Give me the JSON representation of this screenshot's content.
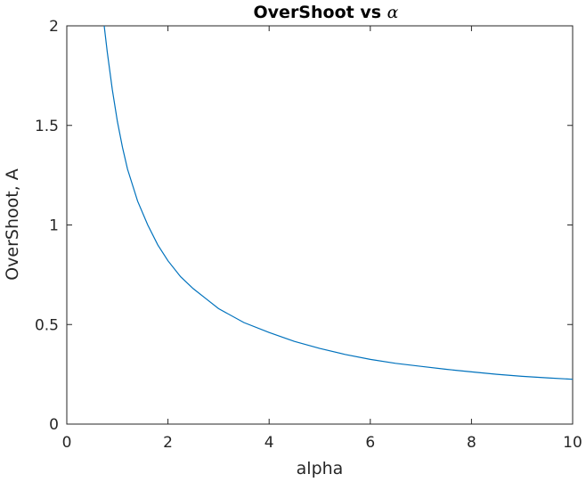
{
  "chart_data": {
    "type": "line",
    "title": "OverShoot vs ",
    "title_symbol": "α",
    "xlabel": "alpha",
    "ylabel": "OverShoot, A",
    "xlim": [
      0,
      10
    ],
    "ylim": [
      0,
      2
    ],
    "xticks": [
      "0",
      "2",
      "4",
      "6",
      "8",
      "10"
    ],
    "yticks": [
      "0",
      "0.5",
      "1",
      "1.5",
      "2"
    ],
    "grid": false,
    "series": [
      {
        "color": "#0072bd",
        "x": [
          0.74,
          0.8,
          0.9,
          1.0,
          1.1,
          1.2,
          1.4,
          1.6,
          1.8,
          2.0,
          2.25,
          2.5,
          2.75,
          3.0,
          3.5,
          4.0,
          4.5,
          5.0,
          5.5,
          6.0,
          6.5,
          7.0,
          7.5,
          8.0,
          8.5,
          9.0,
          9.5,
          10.0
        ],
        "y": [
          2.0,
          1.87,
          1.68,
          1.52,
          1.39,
          1.28,
          1.12,
          1.0,
          0.9,
          0.82,
          0.74,
          0.68,
          0.63,
          0.58,
          0.51,
          0.46,
          0.415,
          0.38,
          0.35,
          0.325,
          0.305,
          0.29,
          0.275,
          0.262,
          0.25,
          0.24,
          0.232,
          0.225
        ]
      }
    ]
  }
}
